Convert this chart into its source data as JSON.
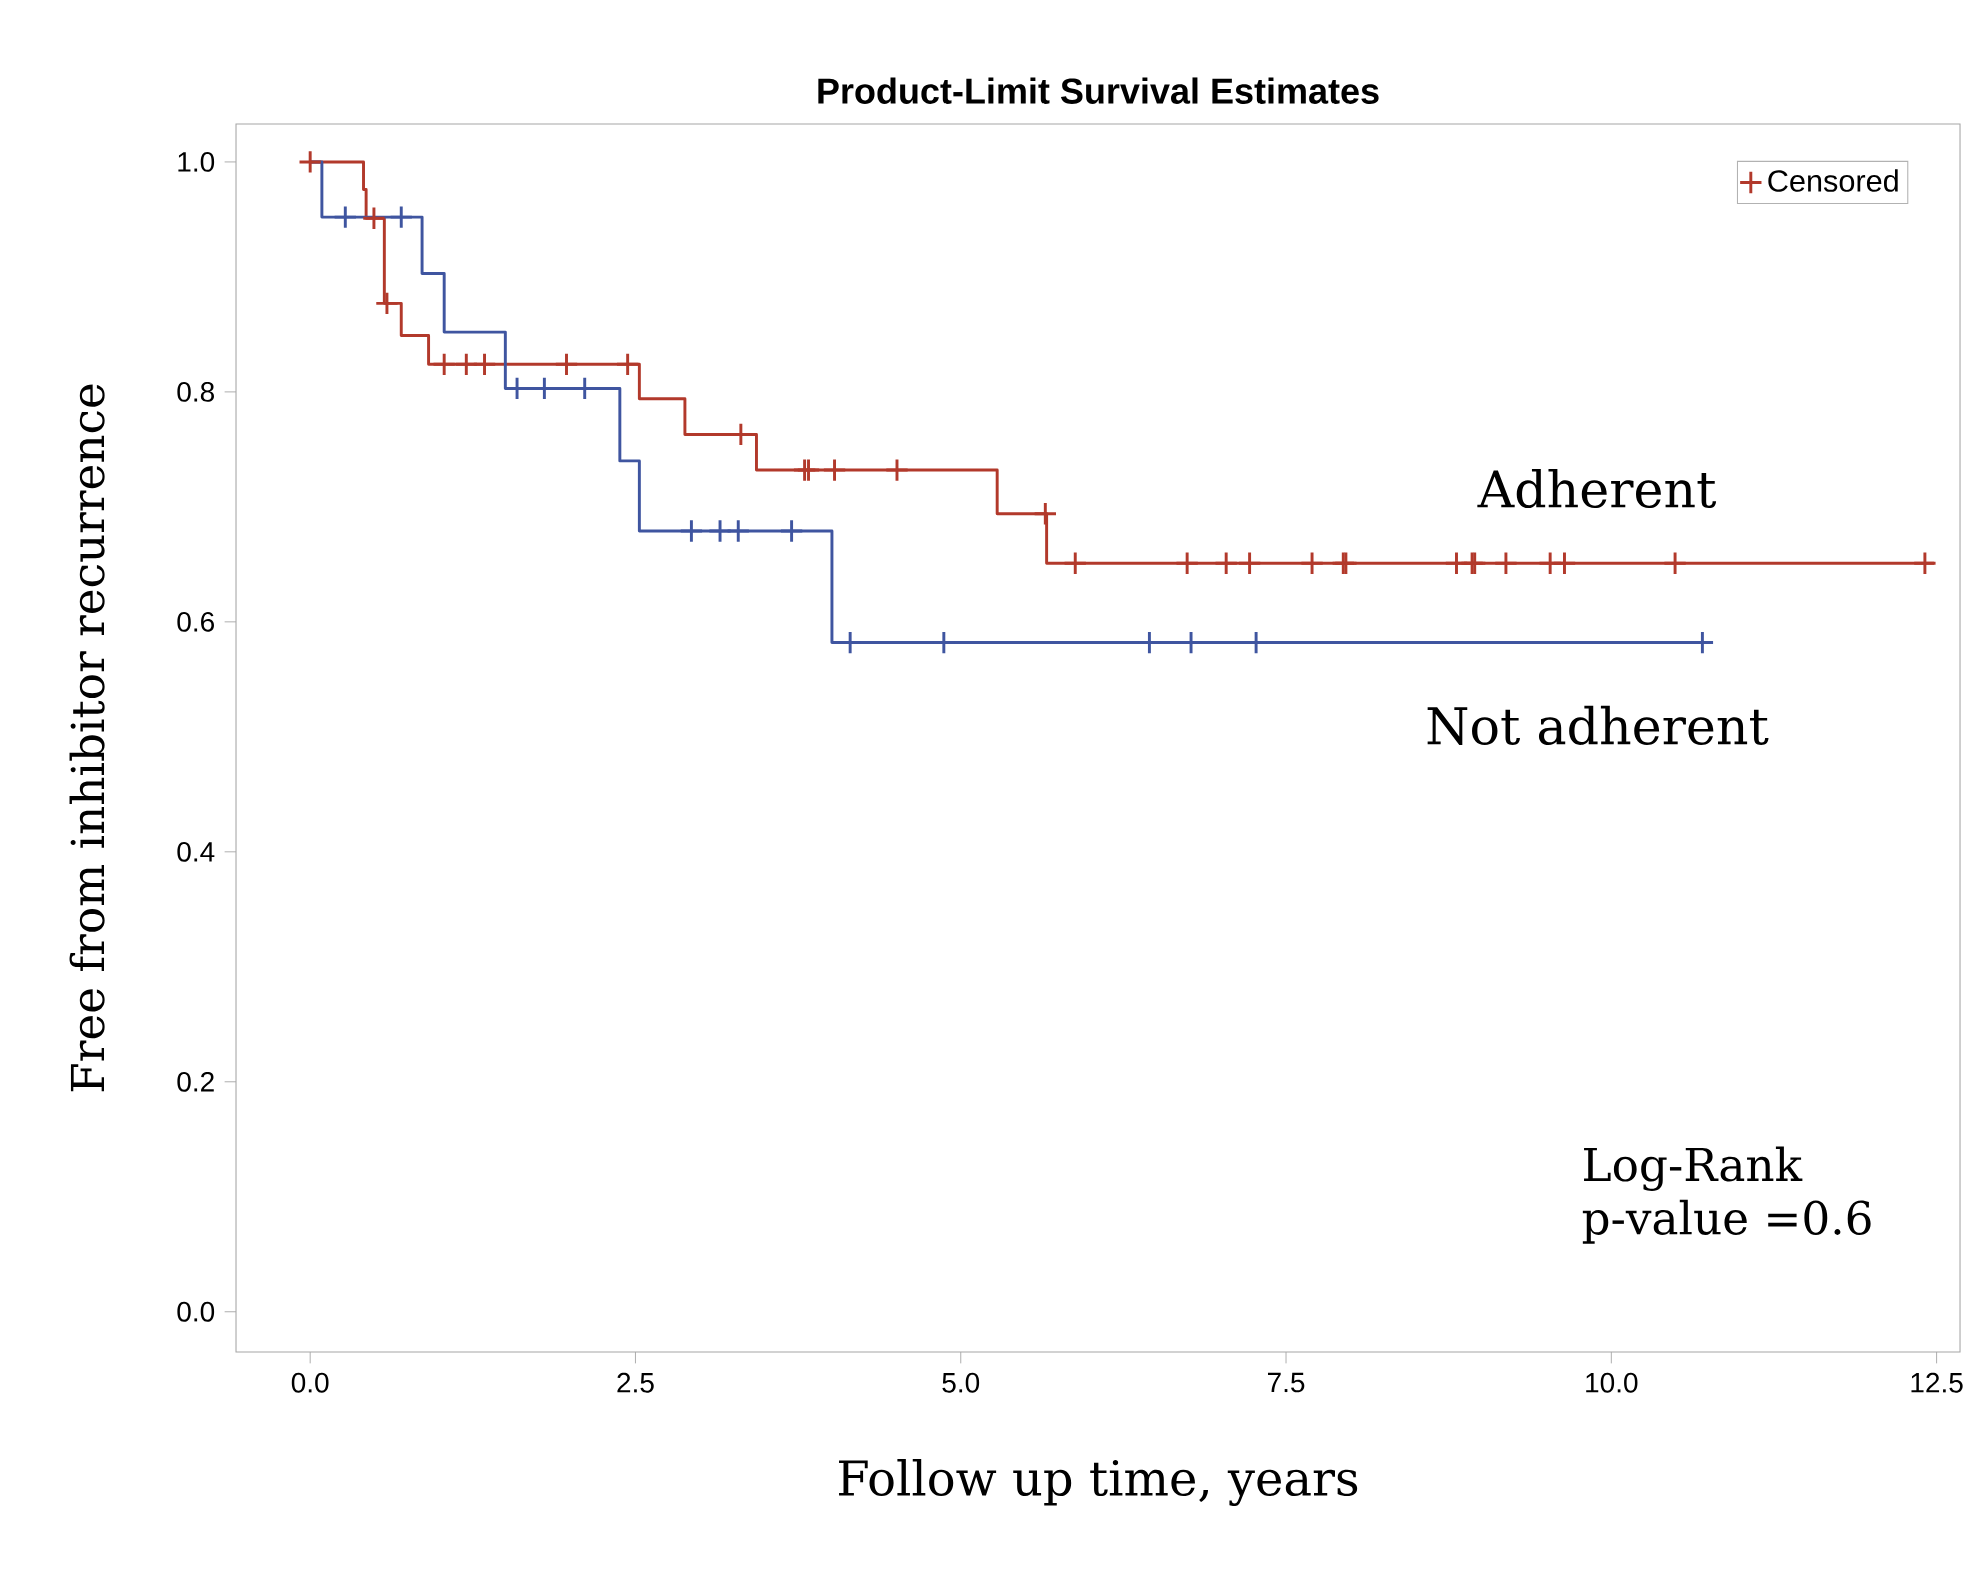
{
  "chart_data": {
    "type": "step",
    "title": "Product-Limit Survival Estimates",
    "xlabel": "Follow up time, years",
    "ylabel": "Free from inhibitor recurrence",
    "xlim": [
      -0.57,
      12.68
    ],
    "ylim": [
      -0.035,
      1.033
    ],
    "xticks": [
      {
        "value": 0,
        "label": "0.0"
      },
      {
        "value": 2.5,
        "label": "2.5"
      },
      {
        "value": 5,
        "label": "5.0"
      },
      {
        "value": 7.5,
        "label": "7.5"
      },
      {
        "value": 10,
        "label": "10.0"
      },
      {
        "value": 12.5,
        "label": "12.5"
      }
    ],
    "yticks": [
      {
        "value": 0,
        "label": "0.0"
      },
      {
        "value": 0.2,
        "label": "0.2"
      },
      {
        "value": 0.4,
        "label": "0.4"
      },
      {
        "value": 0.6,
        "label": "0.6"
      },
      {
        "value": 0.8,
        "label": "0.8"
      },
      {
        "value": 1,
        "label": "1.0"
      }
    ],
    "legend": "top right",
    "grid": false,
    "series": [
      {
        "name": "Adherent",
        "color": "#b2392b",
        "x": [
          0,
          0.41,
          0.43,
          0.57,
          0.7,
          0.91,
          2.53,
          2.88,
          3.43,
          5.28,
          5.66,
          12.48
        ],
        "values": [
          1.0,
          0.976,
          0.951,
          0.877,
          0.849,
          0.824,
          0.794,
          0.763,
          0.732,
          0.694,
          0.651,
          0.651
        ]
      },
      {
        "name": "Not adherent",
        "color": "#3f55a0",
        "x": [
          0,
          0.09,
          0.86,
          1.03,
          1.5,
          2.38,
          2.53,
          4.01,
          10.77
        ],
        "values": [
          1.0,
          0.952,
          0.903,
          0.852,
          0.803,
          0.74,
          0.679,
          0.582,
          0.582
        ]
      },
      {
        "name": "Censored",
        "type": "scatter",
        "marker": "cross",
        "color": "#b2392b",
        "x": [
          0.0,
          0.49,
          0.59,
          1.03,
          1.2,
          1.34,
          1.97,
          2.44,
          3.31,
          3.8,
          3.83,
          4.03,
          4.51,
          5.65,
          5.88,
          6.74,
          7.04,
          7.22,
          7.7,
          7.94,
          7.96,
          8.81,
          8.93,
          8.95,
          9.19,
          9.53,
          9.64,
          10.49,
          12.41
        ],
        "values": [
          1.0,
          0.951,
          0.877,
          0.824,
          0.824,
          0.824,
          0.824,
          0.824,
          0.763,
          0.732,
          0.732,
          0.732,
          0.732,
          0.694,
          0.651,
          0.651,
          0.651,
          0.651,
          0.651,
          0.651,
          0.651,
          0.651,
          0.651,
          0.651,
          0.651,
          0.651,
          0.651,
          0.651,
          0.651
        ]
      },
      {
        "type": "scatter",
        "marker": "cross",
        "color": "#3f55a0",
        "x": [
          0.27,
          0.7,
          1.59,
          1.8,
          2.11,
          2.93,
          3.15,
          3.29,
          3.7,
          4.15,
          4.87,
          6.45,
          6.77,
          7.27,
          10.7
        ],
        "values": [
          0.952,
          0.952,
          0.803,
          0.803,
          0.803,
          0.679,
          0.679,
          0.679,
          0.679,
          0.582,
          0.582,
          0.582,
          0.582,
          0.582,
          0.582
        ]
      }
    ],
    "annotations": [
      "Log-Rank",
      "p-value =0.6"
    ]
  }
}
